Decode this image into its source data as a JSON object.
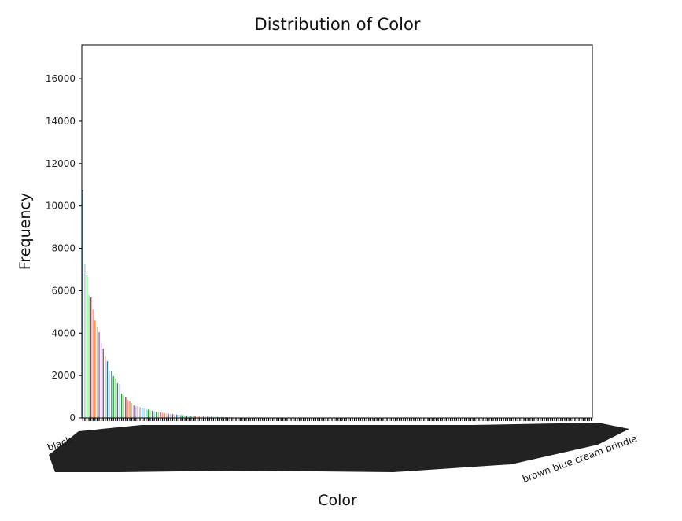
{
  "chart_data": {
    "type": "bar",
    "title": "Distribution of Color",
    "xlabel": "Color",
    "ylabel": "Frequency",
    "ylim": [
      0,
      17600
    ],
    "yticks": [
      0,
      2000,
      4000,
      6000,
      8000,
      10000,
      12000,
      14000,
      16000
    ],
    "grid": false,
    "legend": "none",
    "x_tick_rotation_deg": 20,
    "bar_color_cycle": [
      "#1f77b4",
      "#aec7e8",
      "#2ca02c",
      "#98df8a",
      "#d62728",
      "#ff9896",
      "#ff7f0e",
      "#ffbb78",
      "#9467bd",
      "#c5b0d5",
      "#8c564b",
      "#c49c94",
      "#1f77b4",
      "#9edae5",
      "#17becf",
      "#2ca02c",
      "#98df8a"
    ],
    "legible_category_labels": {
      "first": "black",
      "last": "brown blue cream brindle"
    },
    "values": [
      10760,
      7240,
      6720,
      5790,
      5680,
      5120,
      4600,
      4270,
      4050,
      3530,
      3260,
      2930,
      2670,
      2230,
      2200,
      1970,
      1860,
      1630,
      1600,
      1150,
      1080,
      1000,
      850,
      780,
      710,
      590,
      560,
      540,
      510,
      480,
      450,
      420,
      390,
      360,
      340,
      320,
      300,
      280,
      260,
      245,
      230,
      215,
      200,
      190,
      180,
      170,
      160,
      150,
      140,
      130,
      122,
      115,
      108,
      100,
      95,
      90,
      85,
      80,
      75,
      70,
      66,
      62,
      58,
      55,
      52,
      49,
      46,
      43,
      40,
      38,
      36,
      34,
      32,
      30,
      28,
      26,
      24,
      22,
      20,
      19,
      18,
      17,
      16,
      15,
      14,
      13,
      12,
      12,
      11,
      11,
      10,
      10,
      9,
      9,
      9,
      8,
      8,
      8,
      7,
      7,
      7,
      7,
      6,
      6,
      6,
      6,
      6,
      5,
      5,
      5,
      5,
      5,
      5,
      5,
      5,
      5,
      5,
      4,
      4,
      4,
      4,
      4,
      4,
      4,
      4,
      4,
      4,
      4,
      4,
      4,
      4,
      4,
      3,
      3,
      3,
      3,
      3,
      3,
      3,
      3,
      3,
      3,
      3,
      3,
      3,
      3,
      3,
      3,
      3,
      3,
      3,
      3,
      2,
      2,
      2,
      2,
      2,
      2,
      2,
      2,
      2,
      2,
      2,
      2,
      2,
      2,
      2,
      2,
      2,
      2,
      2,
      2,
      2,
      2,
      2,
      2,
      2,
      2,
      2,
      2,
      2,
      2,
      1,
      1,
      1,
      1,
      1,
      1,
      1,
      1,
      1,
      1,
      1,
      1,
      1,
      1,
      1,
      1,
      1,
      1,
      1,
      1,
      1,
      1,
      1,
      1,
      1,
      1,
      1,
      1,
      1,
      1,
      1,
      1,
      1,
      1,
      1,
      1,
      1,
      1,
      1,
      1,
      1,
      1,
      1,
      1,
      1,
      1,
      1,
      1,
      1,
      1,
      1,
      1,
      1,
      1,
      1,
      1,
      1,
      1,
      1,
      1,
      1,
      1,
      1,
      1,
      1,
      1,
      1,
      1
    ]
  }
}
